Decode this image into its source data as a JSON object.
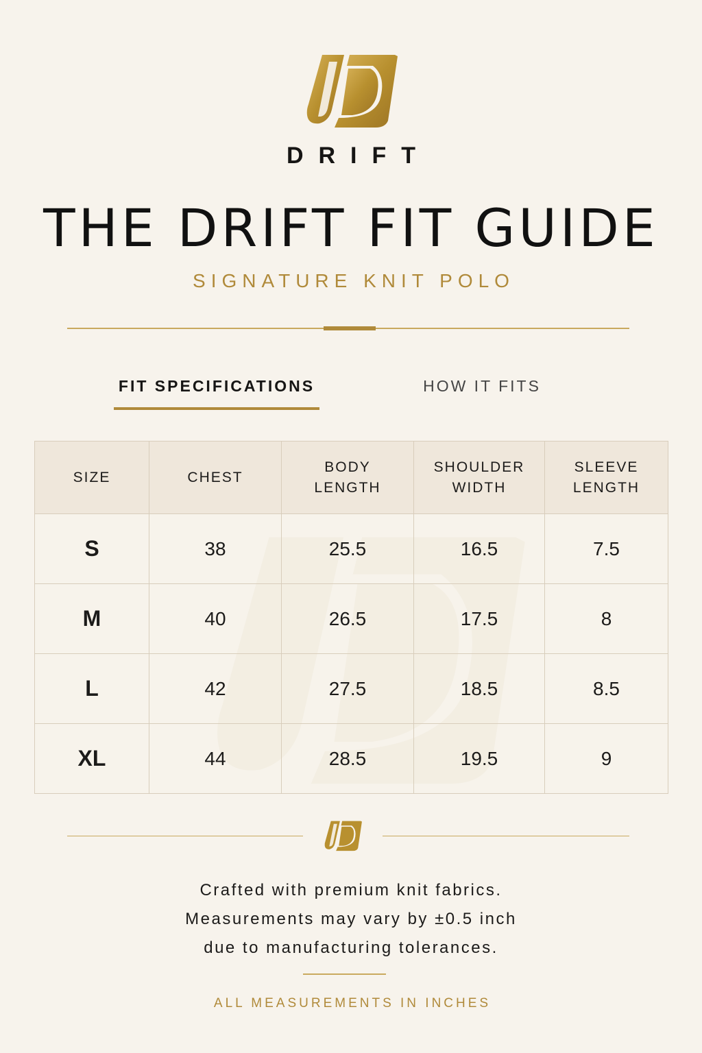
{
  "brand": {
    "name": "DRIFT",
    "logo_icon": "drift-d-logo-icon",
    "accent_color": "#b08a3a"
  },
  "header": {
    "title": "THE DRIFT FIT GUIDE",
    "subtitle": "SIGNATURE KNIT POLO"
  },
  "tabs": [
    {
      "label": "FIT SPECIFICATIONS",
      "active": true
    },
    {
      "label": "HOW IT FITS",
      "active": false
    }
  ],
  "table": {
    "headers": [
      [
        "SIZE"
      ],
      [
        "CHEST"
      ],
      [
        "BODY",
        "LENGTH"
      ],
      [
        "SHOULDER",
        "WIDTH"
      ],
      [
        "SLEEVE",
        "LENGTH"
      ]
    ],
    "rows": [
      [
        "S",
        "38",
        "25.5",
        "16.5",
        "7.5"
      ],
      [
        "M",
        "40",
        "26.5",
        "17.5",
        "8"
      ],
      [
        "L",
        "42",
        "27.5",
        "18.5",
        "8.5"
      ],
      [
        "XL",
        "44",
        "28.5",
        "19.5",
        "9"
      ]
    ]
  },
  "footer": {
    "note_lines": [
      "Crafted with premium knit fabrics.",
      "Measurements may vary by ±0.5 inch",
      "due to manufacturing tolerances."
    ],
    "units": "ALL MEASUREMENTS IN INCHES"
  }
}
